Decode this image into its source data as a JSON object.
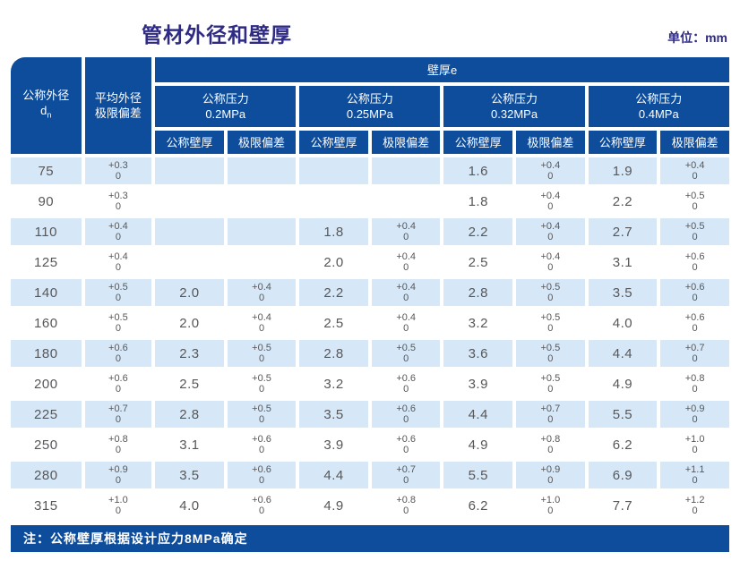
{
  "page": {
    "title": "管材外径和壁厚",
    "unit_label": "单位：mm"
  },
  "colors": {
    "header_blue": "#0e4d9c",
    "pressure_teal": "#3eb4c4",
    "stripe_blue": "#d6e8f7",
    "title_indigo": "#2f2b85",
    "data_text": "#57575a"
  },
  "table": {
    "corner_header": {
      "line1": "公称外径",
      "sym_base": "d",
      "sym_sub": "n"
    },
    "avg_header": {
      "line1": "平均外径",
      "line2": "极限偏差"
    },
    "span_header": "壁厚e",
    "pressure_groups": [
      {
        "line1": "公称压力",
        "line2": "0.2MPa"
      },
      {
        "line1": "公称压力",
        "line2": "0.25MPa"
      },
      {
        "line1": "公称压力",
        "line2": "0.32MPa"
      },
      {
        "line1": "公称压力",
        "line2": "0.4MPa"
      }
    ],
    "sub_headers": {
      "thickness": "公称壁厚",
      "deviation": "极限偏差"
    },
    "rows": [
      {
        "dn": "75",
        "avg": {
          "p": "+0.3",
          "z": "0"
        },
        "pressures": [
          {
            "t": "",
            "dp": "",
            "dz": ""
          },
          {
            "t": "",
            "dp": "",
            "dz": ""
          },
          {
            "t": "1.6",
            "dp": "+0.4",
            "dz": "0"
          },
          {
            "t": "1.9",
            "dp": "+0.4",
            "dz": "0"
          }
        ]
      },
      {
        "dn": "90",
        "avg": {
          "p": "+0.3",
          "z": "0"
        },
        "pressures": [
          {
            "t": "",
            "dp": "",
            "dz": ""
          },
          {
            "t": "",
            "dp": "",
            "dz": ""
          },
          {
            "t": "1.8",
            "dp": "+0.4",
            "dz": "0"
          },
          {
            "t": "2.2",
            "dp": "+0.5",
            "dz": "0"
          }
        ]
      },
      {
        "dn": "110",
        "avg": {
          "p": "+0.4",
          "z": "0"
        },
        "pressures": [
          {
            "t": "",
            "dp": "",
            "dz": ""
          },
          {
            "t": "1.8",
            "dp": "+0.4",
            "dz": "0"
          },
          {
            "t": "2.2",
            "dp": "+0.4",
            "dz": "0"
          },
          {
            "t": "2.7",
            "dp": "+0.5",
            "dz": "0"
          }
        ]
      },
      {
        "dn": "125",
        "avg": {
          "p": "+0.4",
          "z": "0"
        },
        "pressures": [
          {
            "t": "",
            "dp": "",
            "dz": ""
          },
          {
            "t": "2.0",
            "dp": "+0.4",
            "dz": "0"
          },
          {
            "t": "2.5",
            "dp": "+0.4",
            "dz": "0"
          },
          {
            "t": "3.1",
            "dp": "+0.6",
            "dz": "0"
          }
        ]
      },
      {
        "dn": "140",
        "avg": {
          "p": "+0.5",
          "z": "0"
        },
        "pressures": [
          {
            "t": "2.0",
            "dp": "+0.4",
            "dz": "0"
          },
          {
            "t": "2.2",
            "dp": "+0.4",
            "dz": "0"
          },
          {
            "t": "2.8",
            "dp": "+0.5",
            "dz": "0"
          },
          {
            "t": "3.5",
            "dp": "+0.6",
            "dz": "0"
          }
        ]
      },
      {
        "dn": "160",
        "avg": {
          "p": "+0.5",
          "z": "0"
        },
        "pressures": [
          {
            "t": "2.0",
            "dp": "+0.4",
            "dz": "0"
          },
          {
            "t": "2.5",
            "dp": "+0.4",
            "dz": "0"
          },
          {
            "t": "3.2",
            "dp": "+0.5",
            "dz": "0"
          },
          {
            "t": "4.0",
            "dp": "+0.6",
            "dz": "0"
          }
        ]
      },
      {
        "dn": "180",
        "avg": {
          "p": "+0.6",
          "z": "0"
        },
        "pressures": [
          {
            "t": "2.3",
            "dp": "+0.5",
            "dz": "0"
          },
          {
            "t": "2.8",
            "dp": "+0.5",
            "dz": "0"
          },
          {
            "t": "3.6",
            "dp": "+0.5",
            "dz": "0"
          },
          {
            "t": "4.4",
            "dp": "+0.7",
            "dz": "0"
          }
        ]
      },
      {
        "dn": "200",
        "avg": {
          "p": "+0.6",
          "z": "0"
        },
        "pressures": [
          {
            "t": "2.5",
            "dp": "+0.5",
            "dz": "0"
          },
          {
            "t": "3.2",
            "dp": "+0.6",
            "dz": "0"
          },
          {
            "t": "3.9",
            "dp": "+0.5",
            "dz": "0"
          },
          {
            "t": "4.9",
            "dp": "+0.8",
            "dz": "0"
          }
        ]
      },
      {
        "dn": "225",
        "avg": {
          "p": "+0.7",
          "z": "0"
        },
        "pressures": [
          {
            "t": "2.8",
            "dp": "+0.5",
            "dz": "0"
          },
          {
            "t": "3.5",
            "dp": "+0.6",
            "dz": "0"
          },
          {
            "t": "4.4",
            "dp": "+0.7",
            "dz": "0"
          },
          {
            "t": "5.5",
            "dp": "+0.9",
            "dz": "0"
          }
        ]
      },
      {
        "dn": "250",
        "avg": {
          "p": "+0.8",
          "z": "0"
        },
        "pressures": [
          {
            "t": "3.1",
            "dp": "+0.6",
            "dz": "0"
          },
          {
            "t": "3.9",
            "dp": "+0.6",
            "dz": "0"
          },
          {
            "t": "4.9",
            "dp": "+0.8",
            "dz": "0"
          },
          {
            "t": "6.2",
            "dp": "+1.0",
            "dz": "0"
          }
        ]
      },
      {
        "dn": "280",
        "avg": {
          "p": "+0.9",
          "z": "0"
        },
        "pressures": [
          {
            "t": "3.5",
            "dp": "+0.6",
            "dz": "0"
          },
          {
            "t": "4.4",
            "dp": "+0.7",
            "dz": "0"
          },
          {
            "t": "5.5",
            "dp": "+0.9",
            "dz": "0"
          },
          {
            "t": "6.9",
            "dp": "+1.1",
            "dz": "0"
          }
        ]
      },
      {
        "dn": "315",
        "avg": {
          "p": "+1.0",
          "z": "0"
        },
        "pressures": [
          {
            "t": "4.0",
            "dp": "+0.6",
            "dz": "0"
          },
          {
            "t": "4.9",
            "dp": "+0.8",
            "dz": "0"
          },
          {
            "t": "6.2",
            "dp": "+1.0",
            "dz": "0"
          },
          {
            "t": "7.7",
            "dp": "+1.2",
            "dz": "0"
          }
        ]
      }
    ],
    "note": "注：公称壁厚根据设计应力8MPa确定"
  }
}
